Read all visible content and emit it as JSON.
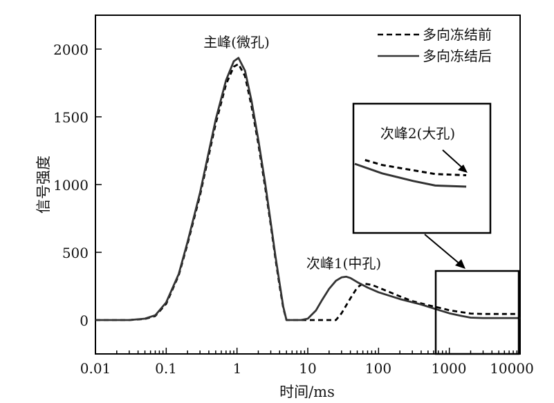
{
  "chart_data": {
    "type": "line",
    "xlabel": "时间/ms",
    "ylabel": "信号强度",
    "xscale": "log",
    "xlim": [
      0.01,
      10000
    ],
    "ylim": [
      -250,
      2250
    ],
    "x_ticks": [
      "0.01",
      "0.1",
      "1",
      "10",
      "100",
      "1000",
      "10000"
    ],
    "y_ticks": [
      "0",
      "500",
      "1000",
      "1500",
      "2000"
    ],
    "legend_position": "top-right",
    "annotations": [
      "主峰(微孔)",
      "次峰1(中孔)",
      "次峰2(大孔)"
    ],
    "series": [
      {
        "name": "多向冻结前",
        "style": "dashed",
        "color": "#000000",
        "points": [
          [
            0.01,
            0
          ],
          [
            0.03,
            0
          ],
          [
            0.05,
            8
          ],
          [
            0.07,
            30
          ],
          [
            0.1,
            120
          ],
          [
            0.15,
            330
          ],
          [
            0.2,
            560
          ],
          [
            0.3,
            920
          ],
          [
            0.5,
            1450
          ],
          [
            0.7,
            1740
          ],
          [
            0.9,
            1870
          ],
          [
            1.05,
            1890
          ],
          [
            1.3,
            1800
          ],
          [
            1.6,
            1580
          ],
          [
            2,
            1300
          ],
          [
            2.5,
            980
          ],
          [
            3,
            700
          ],
          [
            3.5,
            450
          ],
          [
            4,
            250
          ],
          [
            4.5,
            90
          ],
          [
            5,
            0
          ],
          [
            10,
            0
          ],
          [
            20,
            0
          ],
          [
            25,
            0
          ],
          [
            30,
            50
          ],
          [
            40,
            160
          ],
          [
            50,
            240
          ],
          [
            60,
            270
          ],
          [
            80,
            260
          ],
          [
            100,
            240
          ],
          [
            200,
            175
          ],
          [
            300,
            140
          ],
          [
            500,
            110
          ],
          [
            800,
            85
          ],
          [
            1000,
            72
          ],
          [
            1500,
            58
          ],
          [
            2000,
            48
          ],
          [
            3000,
            45
          ],
          [
            5000,
            45
          ],
          [
            10000,
            45
          ]
        ]
      },
      {
        "name": "多向冻结后",
        "style": "solid",
        "color": "#333333",
        "points": [
          [
            0.01,
            0
          ],
          [
            0.03,
            0
          ],
          [
            0.05,
            10
          ],
          [
            0.07,
            35
          ],
          [
            0.1,
            130
          ],
          [
            0.15,
            340
          ],
          [
            0.2,
            575
          ],
          [
            0.3,
            940
          ],
          [
            0.5,
            1480
          ],
          [
            0.7,
            1770
          ],
          [
            0.9,
            1910
          ],
          [
            1.05,
            1935
          ],
          [
            1.3,
            1840
          ],
          [
            1.6,
            1620
          ],
          [
            2,
            1330
          ],
          [
            2.5,
            1010
          ],
          [
            3,
            720
          ],
          [
            3.5,
            470
          ],
          [
            4,
            270
          ],
          [
            4.5,
            100
          ],
          [
            5,
            0
          ],
          [
            8,
            0
          ],
          [
            10,
            10
          ],
          [
            13,
            70
          ],
          [
            16,
            150
          ],
          [
            20,
            230
          ],
          [
            25,
            290
          ],
          [
            30,
            315
          ],
          [
            35,
            320
          ],
          [
            40,
            310
          ],
          [
            50,
            280
          ],
          [
            70,
            240
          ],
          [
            100,
            205
          ],
          [
            200,
            155
          ],
          [
            400,
            115
          ],
          [
            700,
            75
          ],
          [
            1000,
            50
          ],
          [
            1500,
            30
          ],
          [
            2000,
            18
          ],
          [
            3000,
            15
          ],
          [
            5000,
            15
          ],
          [
            10000,
            15
          ]
        ]
      }
    ]
  }
}
